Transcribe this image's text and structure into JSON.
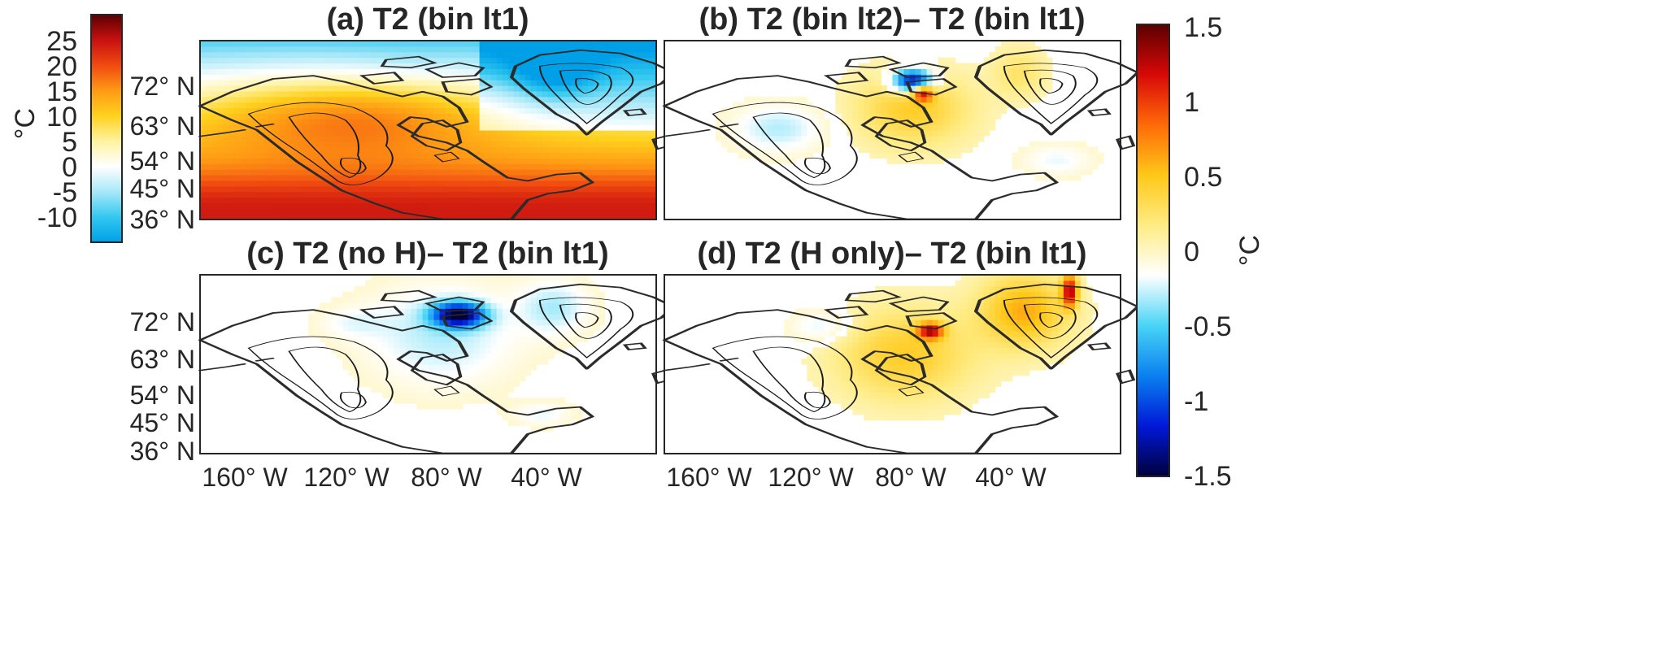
{
  "figure": {
    "colorbar_left": {
      "unit": "°C",
      "ticks": [
        "25",
        "20",
        "15",
        "10",
        "5",
        "0",
        "-5",
        "-10"
      ],
      "range": [
        -15,
        30
      ],
      "colormap": [
        "#00a0e8",
        "#33c8f0",
        "#a8e8f8",
        "#ffffff",
        "#fff2a0",
        "#ffd21e",
        "#ff9a14",
        "#f04a10",
        "#c81010",
        "#5c0000"
      ]
    },
    "colorbar_right": {
      "unit": "°C",
      "ticks": [
        "1.5",
        "1",
        "0.5",
        "0",
        "-0.5",
        "-1",
        "-1.5"
      ],
      "range": [
        -1.5,
        1.5
      ],
      "colormap": [
        "#00003a",
        "#0018d8",
        "#0a80f0",
        "#48d4f6",
        "#ffffff",
        "#ffec84",
        "#ffc818",
        "#ff6a08",
        "#d80808",
        "#5a0000"
      ]
    },
    "lat_ticks": [
      "72° N",
      "63° N",
      "54° N",
      "45° N",
      "36° N"
    ],
    "lon_ticks": [
      "160° W",
      "120° W",
      "80° W",
      "40° W"
    ]
  },
  "chart_data": [
    {
      "type": "heatmap",
      "title": "(a) T2 (bin lt1)",
      "x_ticks": [
        "160° W",
        "120° W",
        "80° W",
        "40° W"
      ],
      "y_ticks": [
        "72° N",
        "63° N",
        "54° N",
        "45° N",
        "36° N"
      ],
      "xlim": [
        -180,
        0
      ],
      "ylim": [
        35,
        80
      ],
      "colorbar": "left",
      "value_range": [
        -15,
        30
      ],
      "patches": [
        {
          "lon": -100,
          "lat": 36,
          "value": 24,
          "rx": 78,
          "ry": 7,
          "pattern": "band"
        },
        {
          "lon": -120,
          "lat": 62,
          "value": 11,
          "rx": 60,
          "ry": 10
        },
        {
          "lon": -40,
          "lat": 74,
          "value": -10,
          "rx": 16,
          "ry": 8
        },
        {
          "lon": -95,
          "lat": 74,
          "value": -1,
          "rx": 30,
          "ry": 6
        }
      ]
    },
    {
      "type": "heatmap",
      "title": "(b) T2 (bin lt2)–  T2 (bin lt1)",
      "x_ticks": [],
      "y_ticks": [],
      "xlim": [
        -180,
        0
      ],
      "ylim": [
        35,
        80
      ],
      "colorbar": "right",
      "value_range": [
        -1.5,
        1.5
      ],
      "patches": [
        {
          "lon": -82,
          "lat": 63,
          "value": 0.45,
          "rx": 22,
          "ry": 9
        },
        {
          "lon": -82,
          "lat": 70,
          "value": -1.4,
          "rx": 8,
          "ry": 3
        },
        {
          "lon": -78,
          "lat": 67,
          "value": 1.1,
          "rx": 4,
          "ry": 2
        },
        {
          "lon": -135,
          "lat": 58,
          "value": -0.3,
          "rx": 18,
          "ry": 6
        },
        {
          "lon": -40,
          "lat": 72,
          "value": 0.25,
          "rx": 10,
          "ry": 6
        },
        {
          "lon": -25,
          "lat": 50,
          "value": -0.2,
          "rx": 14,
          "ry": 4
        }
      ]
    },
    {
      "type": "heatmap",
      "title": "(c) T2 (no H)–  T2 (bin lt1)",
      "x_ticks": [
        "160° W",
        "120° W",
        "80° W",
        "40° W"
      ],
      "y_ticks": [
        "72° N",
        "63° N",
        "54° N",
        "45° N",
        "36° N"
      ],
      "xlim": [
        -180,
        0
      ],
      "ylim": [
        35,
        80
      ],
      "colorbar": "right",
      "value_range": [
        -1.5,
        1.5
      ],
      "patches": [
        {
          "lon": -85,
          "lat": 65,
          "value": -0.3,
          "rx": 30,
          "ry": 13
        },
        {
          "lon": -78,
          "lat": 70,
          "value": -1.4,
          "rx": 10,
          "ry": 3
        },
        {
          "lon": -40,
          "lat": 72,
          "value": -0.3,
          "rx": 14,
          "ry": 7
        },
        {
          "lon": -45,
          "lat": 45,
          "value": -0.2,
          "rx": 12,
          "ry": 3
        },
        {
          "lon": -120,
          "lat": 68,
          "value": -0.15,
          "rx": 14,
          "ry": 4
        }
      ]
    },
    {
      "type": "heatmap",
      "title": "(d) T2 (H only)–  T2 (bin lt1)",
      "x_ticks": [],
      "y_ticks": [],
      "xlim": [
        -180,
        0
      ],
      "ylim": [
        35,
        80
      ],
      "colorbar": "right",
      "value_range": [
        -1.5,
        1.5
      ],
      "patches": [
        {
          "lon": -85,
          "lat": 60,
          "value": 0.45,
          "rx": 26,
          "ry": 11
        },
        {
          "lon": -38,
          "lat": 71,
          "value": 0.6,
          "rx": 17,
          "ry": 9
        },
        {
          "lon": -75,
          "lat": 66,
          "value": 1.1,
          "rx": 5,
          "ry": 2
        },
        {
          "lon": -20,
          "lat": 76,
          "value": 1.2,
          "rx": 3,
          "ry": 4
        },
        {
          "lon": -118,
          "lat": 67,
          "value": -0.25,
          "rx": 12,
          "ry": 4
        }
      ]
    }
  ]
}
